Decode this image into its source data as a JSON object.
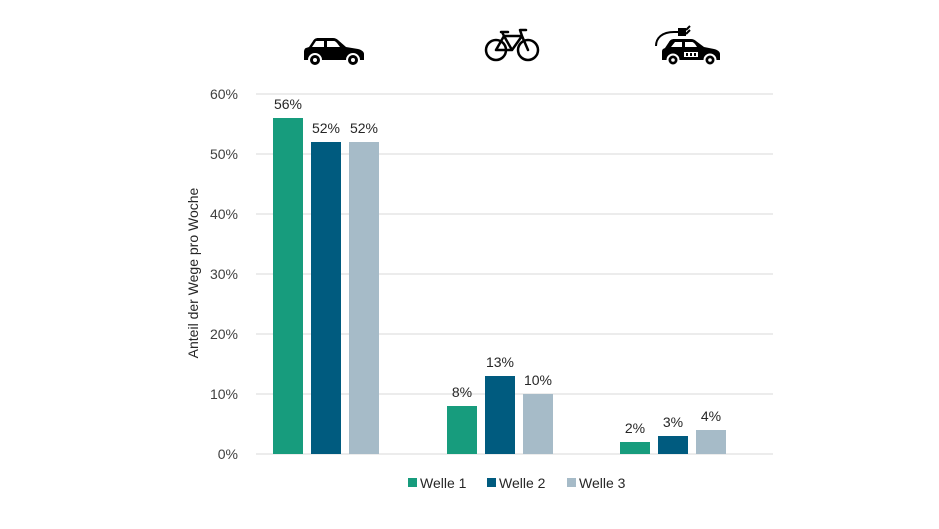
{
  "chart_data": {
    "type": "bar",
    "categories": [
      "car",
      "bicycle",
      "electric-car"
    ],
    "category_icons": [
      "car-icon",
      "bicycle-icon",
      "electric-car-icon"
    ],
    "series": [
      {
        "name": "Welle 1",
        "values": [
          56,
          8,
          2
        ],
        "labels": [
          "56%",
          "8%",
          "2%"
        ],
        "color": "#179C7D"
      },
      {
        "name": "Welle 2",
        "values": [
          52,
          13,
          3
        ],
        "labels": [
          "52%",
          "13%",
          "3%"
        ],
        "color": "#005B7F"
      },
      {
        "name": "Welle 3",
        "values": [
          52,
          10,
          4
        ],
        "labels": [
          "52%",
          "10%",
          "4%"
        ],
        "color": "#A6BBC8"
      }
    ],
    "ylabel": "Anteil der Wege pro Woche",
    "ylim": [
      0,
      60
    ],
    "yticks": [
      0,
      10,
      20,
      30,
      40,
      50,
      60
    ],
    "ytick_labels": [
      "0%",
      "10%",
      "20%",
      "30%",
      "40%",
      "50%",
      "60%"
    ],
    "grid": true,
    "legend_position": "bottom"
  }
}
